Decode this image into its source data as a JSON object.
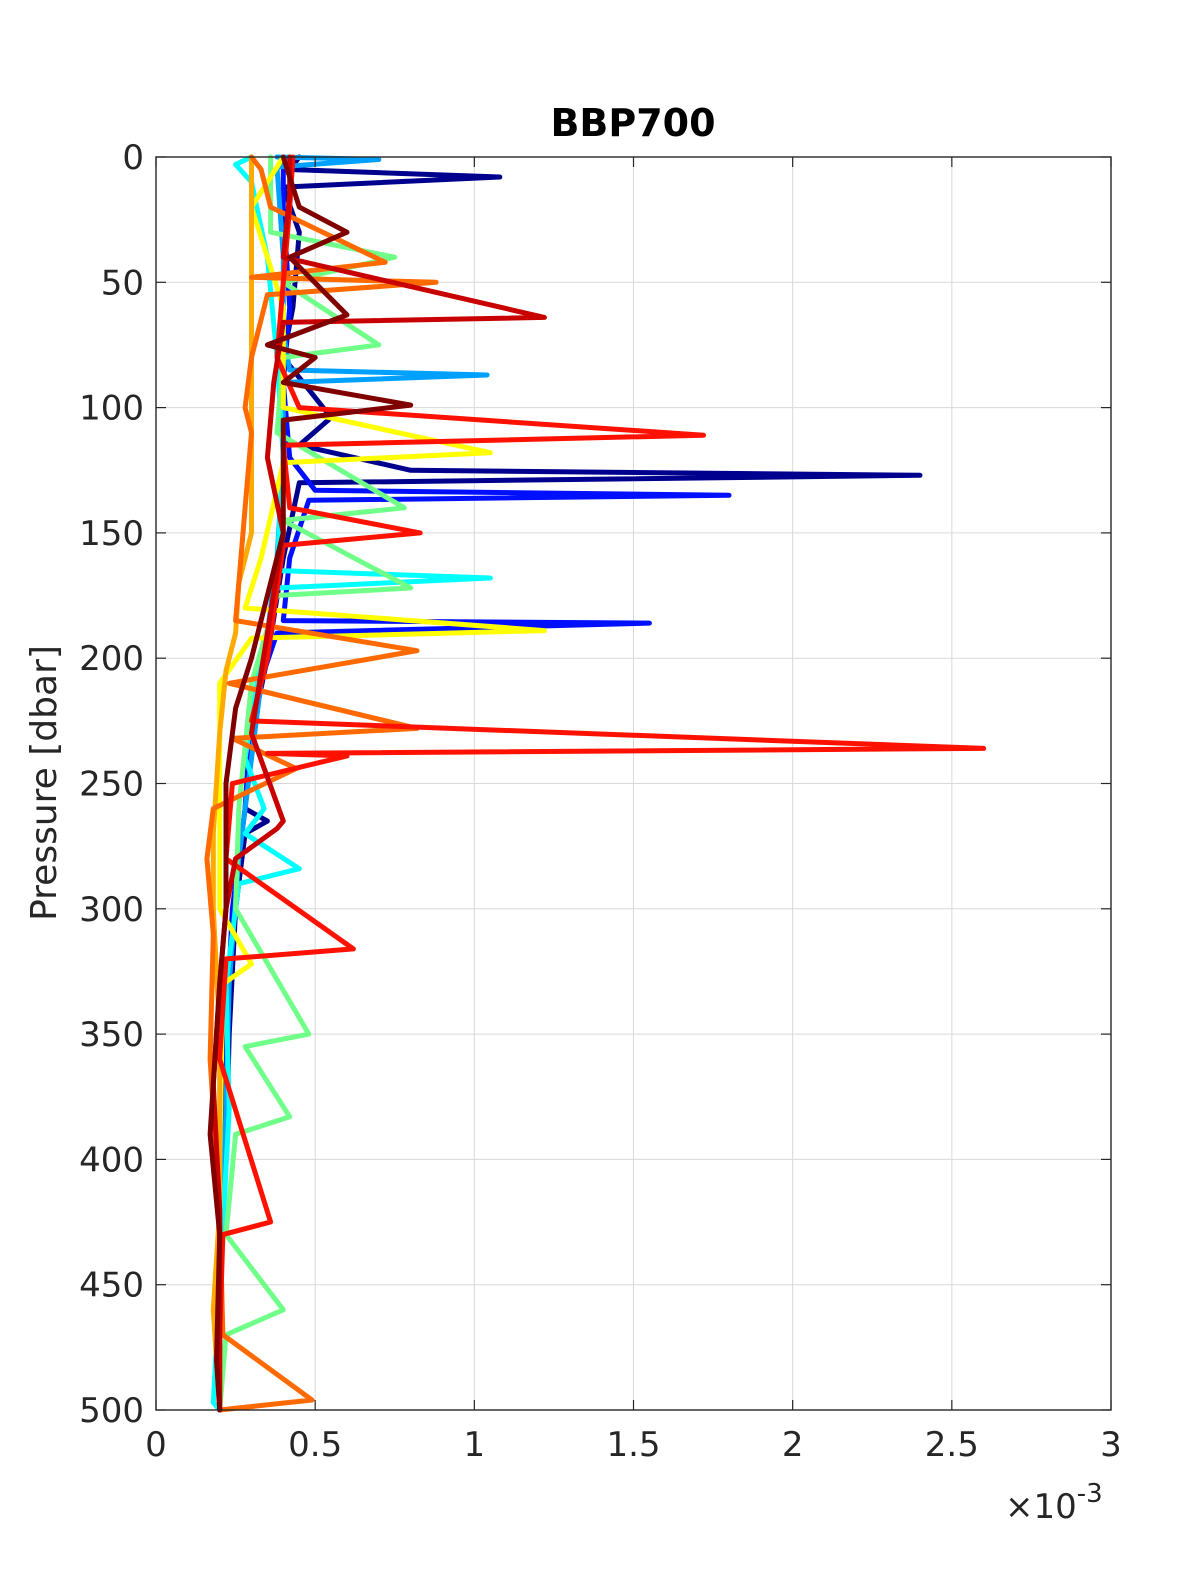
{
  "chart_data": {
    "type": "line",
    "title": "BBP700",
    "xlabel": "",
    "ylabel": "Pressure [dbar]",
    "xlim": [
      0,
      0.003
    ],
    "ylim": [
      0,
      500
    ],
    "y_reversed": true,
    "grid": true,
    "x_ticks": [
      0,
      0.0005,
      0.001,
      0.0015,
      0.002,
      0.0025,
      0.003
    ],
    "x_tick_labels": [
      "0",
      "0.5",
      "1",
      "1.5",
      "2",
      "2.5",
      "3"
    ],
    "y_ticks": [
      0,
      50,
      100,
      150,
      200,
      250,
      300,
      350,
      400,
      450,
      500
    ],
    "y_tick_labels": [
      "0",
      "50",
      "100",
      "150",
      "200",
      "250",
      "300",
      "350",
      "400",
      "450",
      "500"
    ],
    "x_exponent_label": {
      "base": "×10",
      "exponent": "-3"
    },
    "colormap": "jet",
    "series": [
      {
        "color": "#00008f",
        "points": [
          [
            0.00045,
            0
          ],
          [
            0.00042,
            5
          ],
          [
            0.00108,
            8
          ],
          [
            0.0004,
            12
          ],
          [
            0.00045,
            30
          ],
          [
            0.00043,
            60
          ],
          [
            0.0004,
            80
          ],
          [
            0.00055,
            104
          ],
          [
            0.00045,
            115
          ],
          [
            0.0008,
            125
          ],
          [
            0.0024,
            127
          ],
          [
            0.00045,
            130
          ],
          [
            0.0004,
            160
          ],
          [
            0.00035,
            200
          ],
          [
            0.0003,
            230
          ],
          [
            0.00028,
            260
          ],
          [
            0.00035,
            265
          ],
          [
            0.00028,
            270
          ],
          [
            0.00025,
            300
          ],
          [
            0.00023,
            350
          ],
          [
            0.00022,
            400
          ],
          [
            0.0002,
            450
          ],
          [
            0.0002,
            500
          ]
        ]
      },
      {
        "color": "#0010ff",
        "points": [
          [
            0.0004,
            0
          ],
          [
            0.0004,
            20
          ],
          [
            0.00042,
            60
          ],
          [
            0.0004,
            90
          ],
          [
            0.00042,
            120
          ],
          [
            0.0005,
            133
          ],
          [
            0.0018,
            135
          ],
          [
            0.00048,
            137
          ],
          [
            0.00042,
            160
          ],
          [
            0.0004,
            185
          ],
          [
            0.00155,
            186
          ],
          [
            0.00038,
            190
          ],
          [
            0.0003,
            220
          ],
          [
            0.00028,
            260
          ],
          [
            0.00024,
            300
          ],
          [
            0.00022,
            350
          ],
          [
            0.00021,
            400
          ],
          [
            0.0002,
            450
          ],
          [
            0.0002,
            500
          ]
        ]
      },
      {
        "color": "#00a0ff",
        "points": [
          [
            0.00038,
            0
          ],
          [
            0.0007,
            1
          ],
          [
            0.00038,
            4
          ],
          [
            0.0004,
            40
          ],
          [
            0.0004,
            70
          ],
          [
            0.00042,
            85
          ],
          [
            0.00104,
            87
          ],
          [
            0.0004,
            90
          ],
          [
            0.0004,
            120
          ],
          [
            0.00038,
            160
          ],
          [
            0.00034,
            200
          ],
          [
            0.0003,
            240
          ],
          [
            0.00026,
            280
          ],
          [
            0.00023,
            330
          ],
          [
            0.00022,
            380
          ],
          [
            0.0002,
            450
          ],
          [
            0.0002,
            500
          ]
        ]
      },
      {
        "color": "#00ffff",
        "points": [
          [
            0.0003,
            0
          ],
          [
            0.00025,
            3
          ],
          [
            0.0003,
            10
          ],
          [
            0.00035,
            40
          ],
          [
            0.00038,
            80
          ],
          [
            0.0004,
            120
          ],
          [
            0.00038,
            165
          ],
          [
            0.00105,
            168
          ],
          [
            0.00038,
            172
          ],
          [
            0.00033,
            200
          ],
          [
            0.00028,
            240
          ],
          [
            0.00034,
            260
          ],
          [
            0.00028,
            270
          ],
          [
            0.00045,
            284
          ],
          [
            0.00026,
            290
          ],
          [
            0.00022,
            330
          ],
          [
            0.00023,
            380
          ],
          [
            0.0002,
            450
          ],
          [
            0.00018,
            497
          ],
          [
            0.0002,
            500
          ]
        ]
      },
      {
        "color": "#70ff88",
        "points": [
          [
            0.00036,
            0
          ],
          [
            0.00036,
            30
          ],
          [
            0.00075,
            40
          ],
          [
            0.0004,
            50
          ],
          [
            0.0007,
            75
          ],
          [
            0.0004,
            80
          ],
          [
            0.00038,
            110
          ],
          [
            0.00078,
            140
          ],
          [
            0.0004,
            145
          ],
          [
            0.0008,
            172
          ],
          [
            0.00038,
            175
          ],
          [
            0.0003,
            210
          ],
          [
            0.00026,
            260
          ],
          [
            0.00025,
            300
          ],
          [
            0.00048,
            350
          ],
          [
            0.00028,
            355
          ],
          [
            0.00042,
            383
          ],
          [
            0.00025,
            390
          ],
          [
            0.00022,
            430
          ],
          [
            0.0004,
            460
          ],
          [
            0.00022,
            470
          ],
          [
            0.0002,
            500
          ]
        ]
      },
      {
        "color": "#ffff00",
        "points": [
          [
            0.0004,
            0
          ],
          [
            0.0003,
            20
          ],
          [
            0.0004,
            60
          ],
          [
            0.0004,
            100
          ],
          [
            0.00105,
            118
          ],
          [
            0.0004,
            122
          ],
          [
            0.00033,
            160
          ],
          [
            0.00028,
            180
          ],
          [
            0.00122,
            189
          ],
          [
            0.0003,
            192
          ],
          [
            0.0002,
            210
          ],
          [
            0.0002,
            250
          ],
          [
            0.0002,
            300
          ],
          [
            0.0003,
            322
          ],
          [
            0.00021,
            330
          ],
          [
            0.0002,
            400
          ],
          [
            0.0002,
            450
          ],
          [
            0.0002,
            500
          ]
        ]
      },
      {
        "color": "#ffaa00",
        "points": [
          [
            0.0003,
            0
          ],
          [
            0.0003,
            10
          ],
          [
            0.0003,
            30
          ],
          [
            0.0003,
            60
          ],
          [
            0.0003,
            90
          ],
          [
            0.0003,
            120
          ],
          [
            0.0003,
            150
          ],
          [
            0.00026,
            170
          ],
          [
            0.00025,
            190
          ],
          [
            0.00022,
            205
          ],
          [
            0.0002,
            230
          ],
          [
            0.00018,
            270
          ],
          [
            0.00018,
            300
          ],
          [
            0.0002,
            350
          ],
          [
            0.0002,
            420
          ],
          [
            0.00018,
            460
          ],
          [
            0.0002,
            500
          ]
        ]
      },
      {
        "color": "#ff6a00",
        "points": [
          [
            0.0003,
            0
          ],
          [
            0.00033,
            5
          ],
          [
            0.00036,
            20
          ],
          [
            0.00072,
            42
          ],
          [
            0.0003,
            48
          ],
          [
            0.00088,
            50
          ],
          [
            0.00035,
            55
          ],
          [
            0.0003,
            80
          ],
          [
            0.00028,
            100
          ],
          [
            0.0003,
            110
          ],
          [
            0.00028,
            140
          ],
          [
            0.00026,
            170
          ],
          [
            0.00025,
            185
          ],
          [
            0.00082,
            197
          ],
          [
            0.00023,
            210
          ],
          [
            0.00082,
            228
          ],
          [
            0.00024,
            232
          ],
          [
            0.00044,
            244
          ],
          [
            0.00018,
            260
          ],
          [
            0.00016,
            280
          ],
          [
            0.00018,
            310
          ],
          [
            0.00017,
            360
          ],
          [
            0.0002,
            420
          ],
          [
            0.00021,
            470
          ],
          [
            0.00049,
            496
          ],
          [
            0.0002,
            500
          ]
        ]
      },
      {
        "color": "#ff1100",
        "points": [
          [
            0.00043,
            0
          ],
          [
            0.00042,
            20
          ],
          [
            0.0004,
            50
          ],
          [
            0.00038,
            80
          ],
          [
            0.00045,
            100
          ],
          [
            0.00172,
            111
          ],
          [
            0.0004,
            115
          ],
          [
            0.00042,
            140
          ],
          [
            0.00083,
            150
          ],
          [
            0.0004,
            155
          ],
          [
            0.00035,
            200
          ],
          [
            0.0003,
            225
          ],
          [
            0.0026,
            236
          ],
          [
            0.00035,
            238
          ],
          [
            0.0006,
            239
          ],
          [
            0.00024,
            250
          ],
          [
            0.00022,
            280
          ],
          [
            0.00062,
            316
          ],
          [
            0.00022,
            320
          ],
          [
            0.0002,
            360
          ],
          [
            0.00036,
            425
          ],
          [
            0.00021,
            430
          ],
          [
            0.0002,
            470
          ],
          [
            0.0002,
            500
          ]
        ]
      },
      {
        "color": "#c80000",
        "points": [
          [
            0.00042,
            0
          ],
          [
            0.00042,
            15
          ],
          [
            0.0004,
            40
          ],
          [
            0.00122,
            64
          ],
          [
            0.0004,
            66
          ],
          [
            0.00037,
            90
          ],
          [
            0.00035,
            120
          ],
          [
            0.0004,
            150
          ],
          [
            0.00035,
            190
          ],
          [
            0.0003,
            230
          ],
          [
            0.0004,
            265
          ],
          [
            0.00038,
            268
          ],
          [
            0.00025,
            280
          ],
          [
            0.00022,
            300
          ],
          [
            0.0002,
            330
          ],
          [
            0.00018,
            370
          ],
          [
            0.0002,
            420
          ],
          [
            0.0002,
            460
          ],
          [
            0.0002,
            500
          ]
        ]
      },
      {
        "color": "#800000",
        "points": [
          [
            0.0004,
            0
          ],
          [
            0.00045,
            20
          ],
          [
            0.0006,
            30
          ],
          [
            0.00042,
            40
          ],
          [
            0.0006,
            63
          ],
          [
            0.00035,
            75
          ],
          [
            0.0005,
            80
          ],
          [
            0.0004,
            90
          ],
          [
            0.0008,
            99
          ],
          [
            0.0004,
            105
          ],
          [
            0.0004,
            150
          ],
          [
            0.0003,
            200
          ],
          [
            0.00025,
            220
          ],
          [
            0.00022,
            250
          ],
          [
            0.00022,
            300
          ],
          [
            0.0002,
            330
          ],
          [
            0.00018,
            370
          ],
          [
            0.00017,
            390
          ],
          [
            0.0002,
            430
          ],
          [
            0.00019,
            480
          ],
          [
            0.0002,
            500
          ]
        ]
      }
    ]
  }
}
